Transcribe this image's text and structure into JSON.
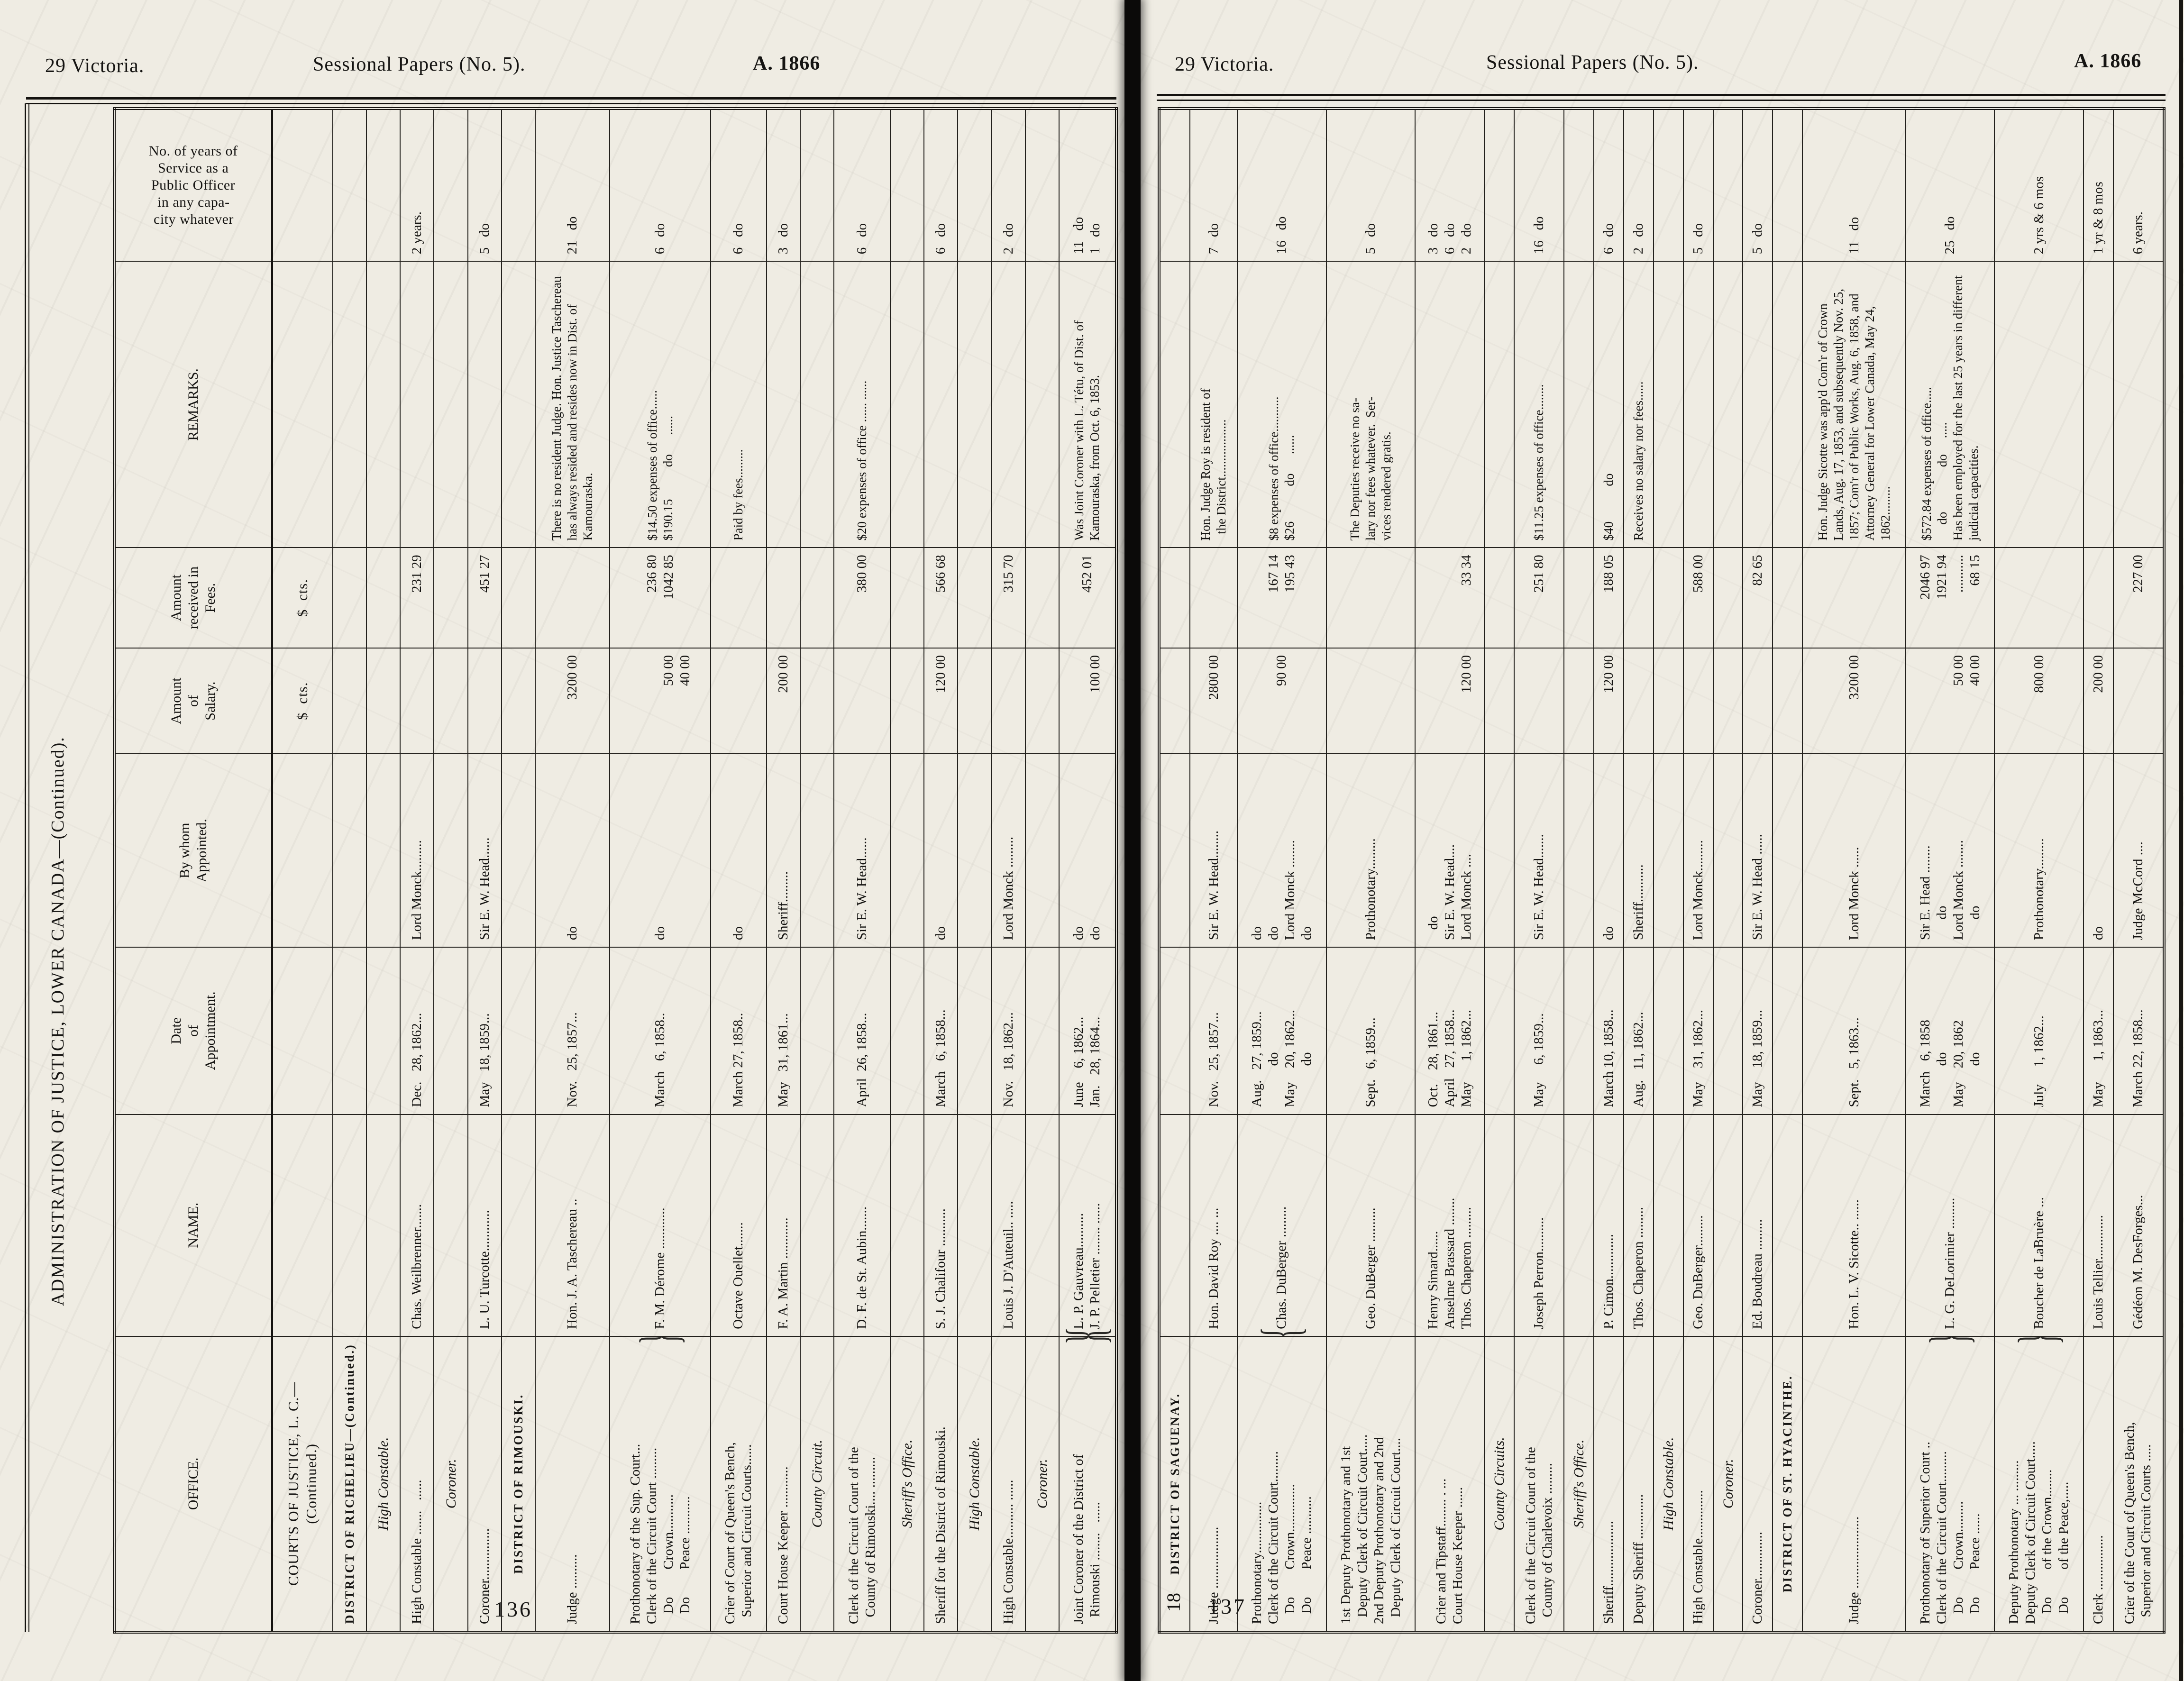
{
  "document": {
    "header_left": "29 Victoria.",
    "header_center": "Sessional Papers (No. 5).",
    "header_right": "A. 1866",
    "side_title": "ADMINISTRATION OF JUSTICE, LOWER CANADA—(Continued).",
    "signature_mark": "18",
    "ink_color": "#151412",
    "paper_color": "#efece3"
  },
  "columns": [
    "OFFICE.",
    "NAME.",
    "Date\nof\nAppointment.",
    "By whom\nAppointed.",
    "Amount\nof\nSalary.",
    "Amount\nreceived in\nFees.",
    "REMARKS.",
    "No. of years of\nService as a\nPublic Officer\nin any capa-\ncity whatever"
  ],
  "pages": [
    {
      "page_number": "136",
      "has_header": true,
      "rows": [
        {
          "t": "section",
          "c": [
            "COURTS OF JUSTICE, L. C.—\n(Continued.)",
            "",
            "",
            "",
            "$  cts.",
            "$  cts.",
            "",
            ""
          ]
        },
        {
          "t": "district",
          "c": [
            "DISTRICT OF RICHELIEU—(Continued.)",
            "",
            "",
            "",
            "",
            "",
            "",
            ""
          ]
        },
        {
          "t": "subhead",
          "c": [
            "High Constable.",
            "",
            "",
            "",
            "",
            "",
            "",
            ""
          ]
        },
        {
          "t": "data",
          "c": [
            "High Constable .......   ......",
            "Chas. Weilbrenner.......",
            "Dec.   28, 1862...",
            "Lord Monck.........",
            "",
            "231 29",
            "",
            "2 years."
          ]
        },
        {
          "t": "subhead",
          "c": [
            "Coroner.",
            "",
            "",
            "",
            "",
            "",
            "",
            ""
          ]
        },
        {
          "t": "data",
          "c": [
            "Coroner...............",
            "L. U. Turcotte............",
            "May   18, 1859...",
            "Sir E. W. Head......",
            "",
            "451 27",
            "",
            "5   do"
          ]
        },
        {
          "t": "district",
          "c": [
            "DISTRICT OF RIMOUSKI.",
            "",
            "",
            "",
            "",
            "",
            "",
            ""
          ]
        },
        {
          "t": "data",
          "c": [
            "Judge ..........",
            "Hon. J. A. Taschereau ..",
            "Nov.   25, 1857...",
            "do",
            "3200 00",
            "",
            "There is no resident Judge. Hon. Justice Taschereau has always resided and resides now in Dist. of Kamouraska.",
            "21   do"
          ]
        },
        {
          "t": "data",
          "obr": true,
          "c": [
            "Prothonotary of the Sup. Court...\nClerk of the Circuit Court .........\n   Do        Crown...........\n   Do        Peace ...........",
            "F. M. Dérome ............",
            "March   6, 1858..",
            "do",
            "\n\n50 00\n40 00",
            "236 80\n1042 85",
            "$14.50 expenses of office......\n$190.15          do      ......",
            "6   do"
          ]
        },
        {
          "t": "data",
          "c": [
            "Crier of Court of Queen's Bench,\n  Superior and Circuit Courts......",
            "Octave Ouellet.......",
            "March 27, 1858..",
            "do",
            "",
            "",
            "Paid by fees.........",
            "6   do"
          ]
        },
        {
          "t": "data",
          "c": [
            "Court House Keeper ............",
            "F. A. Martin ............",
            "May   31, 1861...",
            "Sheriff.........",
            "200 00",
            "",
            "",
            "3   do"
          ]
        },
        {
          "t": "subhead",
          "c": [
            "County Circuit.",
            "",
            "",
            "",
            "",
            "",
            "",
            ""
          ]
        },
        {
          "t": "data",
          "c": [
            "Clerk of the Circuit Court of the\n  County of Rimouski.... .........",
            "D. F. de St. Aubin.......",
            "April  26, 1858...",
            "Sir E. W. Head......",
            "",
            "380 00",
            "$20 expenses of office ...... ......",
            "6   do"
          ]
        },
        {
          "t": "subhead",
          "c": [
            "Sheriff's Office.",
            "",
            "",
            "",
            "",
            "",
            "",
            ""
          ]
        },
        {
          "t": "data",
          "c": [
            "Sheriff for the District of Rimouski.",
            "S. J. Chalifour ...........",
            "March   6, 1858...",
            "do",
            "120 00",
            "566 68",
            "",
            "6   do"
          ]
        },
        {
          "t": "subhead",
          "c": [
            "High Constable.",
            "",
            "",
            "",
            "",
            "",
            "",
            ""
          ]
        },
        {
          "t": "data",
          "c": [
            "High Constable.......... ......",
            "Louis J. D'Auteuil.. .....",
            "Nov.   18, 1862...",
            "Lord Monck .........",
            "",
            "315 70",
            "",
            "2   do"
          ]
        },
        {
          "t": "subhead",
          "c": [
            "Coroner.",
            "",
            "",
            "",
            "",
            "",
            "",
            ""
          ]
        },
        {
          "t": "data",
          "obr": true,
          "nbr": true,
          "c": [
            "Joint Coroner of the District of\n  Rimouski ........   ......",
            "L. P. Gauvreau..........\nJ. P. Pelletier ........ ......",
            "June    6, 1862...\nJan.   28, 1864...",
            "do\ndo",
            "\n100 00",
            "452 01\n",
            "Was Joint Coroner with L. Tétu, of Dist. of Kamouraska, from Oct. 6, 1853.",
            "11   do\n1   do"
          ]
        }
      ]
    },
    {
      "page_number": "137",
      "has_header": false,
      "rows": [
        {
          "t": "district",
          "c": [
            "DISTRICT OF SAGUENAY.",
            "",
            "",
            "",
            "",
            "",
            "",
            ""
          ]
        },
        {
          "t": "data",
          "c": [
            "Judge ..................",
            "Hon. David Roy .... ...",
            "Nov.   25, 1857...",
            "Sir E. W. Head........",
            "2800 00",
            "",
            "Hon. Judge Roy is resident of\n  the District..................",
            "7   do"
          ]
        },
        {
          "t": "data",
          "nbr": true,
          "c": [
            "Prothonotary...............\nClerk of the Circuit Court.........\n   Do        Crown..............\n   Do        Peace ...........",
            "Chas. DuBerger .........",
            "Aug.   27, 1859...\n            do\nMay    20, 1862...\n            do",
            "do\ndo\nLord Monck ........\ndo",
            "90 00",
            "167 14\n195 43",
            "$8 expenses of office...........\n$26           do      ......",
            "16   do"
          ]
        },
        {
          "t": "data",
          "c": [
            "1st Deputy Prothonotary and 1st\n  Deputy Clerk of Circuit Court.....\n2nd Deputy Prothonotary and 2nd\n  Deputy Clerk of Circuit Court....",
            "Geo. DuBerger ..........",
            "Sept.   6, 1859...",
            "Prothonotary.........",
            "",
            "",
            "The Deputies receive no sa-\nlary nor fees whatever.  Ser-\nvices rendered gratis.",
            "5   do"
          ]
        },
        {
          "t": "data",
          "c": [
            "Crier and Tipstaff........ . ...\nCourt House Keeper ......",
            "Henry Simard......\nAnselme Brassard ........\nThos. Chaperon .........",
            "Oct.    28, 1861...\nApril   27, 1858...\nMay      1, 1862...",
            "   do\nSir E. W. Head....\nLord Monck ....",
            "\n\n120 00",
            "\n\n33 34",
            "",
            "3   do\n6   do\n2   do"
          ]
        },
        {
          "t": "subhead",
          "c": [
            "County Circuits.",
            "",
            "",
            "",
            "",
            "",
            "",
            ""
          ]
        },
        {
          "t": "data",
          "c": [
            "Clerk of the Circuit Court of the\n  County of Charlevoix .........",
            "Joseph Perron..........",
            "May     6, 1859...",
            "Sir E. W. Head.......",
            "",
            "251 80",
            "$11.25 expenses of office........",
            "16   do"
          ]
        },
        {
          "t": "subhead",
          "c": [
            "Sheriff's Office.",
            "",
            "",
            "",
            "",
            "",
            "",
            ""
          ]
        },
        {
          "t": "data",
          "c": [
            "Sheriff...................",
            "P. Cimon.............",
            "March 10, 1858...",
            "do",
            "120 00",
            "188 05",
            "$40           do",
            "6   do"
          ]
        },
        {
          "t": "data",
          "c": [
            "Deputy Sheriff .............",
            "Thos. Chaperon .........",
            "Aug.   11, 1862...",
            "Sheriff...........",
            "",
            "",
            "Receives no salary nor fees......",
            "2   do"
          ]
        },
        {
          "t": "subhead",
          "c": [
            "High Constable.",
            "",
            "",
            "",
            "",
            "",
            "",
            ""
          ]
        },
        {
          "t": "data",
          "c": [
            "High Constable..............",
            "Geo. DuBerger.........",
            "May    31, 1862...",
            "Lord Monck.........",
            "",
            "588 00",
            "",
            "5   do"
          ]
        },
        {
          "t": "subhead",
          "c": [
            "Coroner.",
            "",
            "",
            "",
            "",
            "",
            "",
            ""
          ]
        },
        {
          "t": "data",
          "c": [
            "Coroner..............",
            "Ed. Boudreau .........",
            "May    18, 1859...",
            "Sir E. W. Head ......",
            "",
            "82 65",
            "",
            "5   do"
          ]
        },
        {
          "t": "district",
          "c": [
            "DISTRICT OF ST. HYACINTHE.",
            "",
            "",
            "",
            "",
            "",
            "",
            ""
          ]
        },
        {
          "t": "data",
          "c": [
            "Judge .....................",
            "Hon. L. V. Sicotte.. ......",
            "Sept.   5, 1863...",
            "Lord Monck ......",
            "3200 00",
            "",
            "Hon. Judge Sicotte was app'd Com'r of Crown Lands, Aug. 17, 1853, and subsequently Nov. 25, 1857; Com'r of Public Works, Aug. 6, 1858, and Attorney General for Lower Canada, May 24, 1862.........",
            "11   do"
          ]
        },
        {
          "t": "data",
          "obr": true,
          "c": [
            "Prothonotary of Superior Court ..\nClerk of the Circuit Court.........\n   Do        Crown.........\n   Do        Peace ......",
            "L. G. DeLorimier .........",
            "March   6, 1858\n            do\nMay    20, 1862\n            do",
            "Sir E. Head ........\n      do\nLord Monck ........\n      do",
            "\n\n50 00\n40 00",
            "2046 97\n1921 94\n...........\n68 15",
            "$572.84 expenses of office.....\n     do              do     .....\nHas been employed for the last 25 years in different judicial capacities.",
            "25   do"
          ]
        },
        {
          "t": "data",
          "obr": true,
          "c": [
            "Deputy Prothonotary ... .........\nDeputy Clerk of Circuit Court.....\n   Do        of the Crown........\n   Do        of the Peace,.....",
            "Boucher de LaBruère ...",
            "July     1, 1862...",
            "Prothonotary.........",
            "800 00",
            "",
            "",
            "2 yrs & 6 mos"
          ]
        },
        {
          "t": "data",
          "c": [
            "Clerk ................",
            "Louis Tellier.............",
            "May      1, 1863...",
            "do",
            "200 00",
            "",
            "",
            "1 yr & 8 mos"
          ]
        },
        {
          "t": "data",
          "c": [
            "Crier of the Court of Queen's Bench,\n  Superior and Circuit Courts .....",
            "Gédéon M. DesForges...",
            "March 22, 1858...",
            "Judge McCord ....",
            "",
            "227 00",
            "",
            "6 years."
          ]
        }
      ]
    }
  ]
}
